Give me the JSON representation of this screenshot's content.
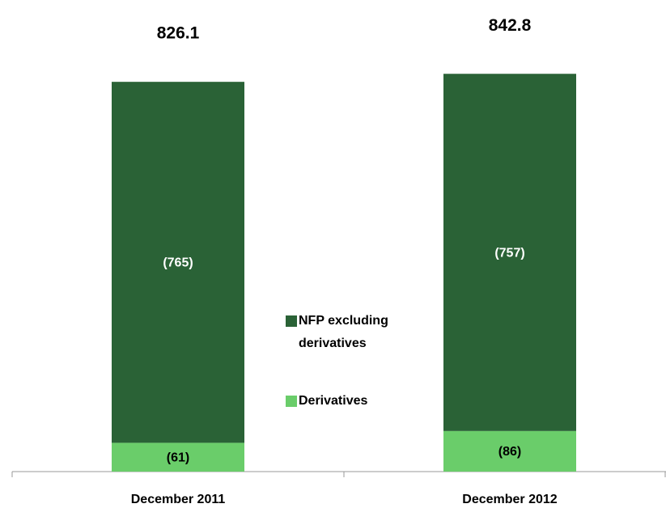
{
  "chart_data": {
    "type": "stacked_bar",
    "categories": [
      "December 2011",
      "December 2012"
    ],
    "series": [
      {
        "name": "Derivatives",
        "color": "#6acd6a",
        "values": [
          61,
          86
        ],
        "value_labels": [
          "(61)",
          "(86)"
        ]
      },
      {
        "name": "NFP excluding derivatives",
        "color": "#2a6236",
        "values": [
          765,
          757
        ],
        "value_labels": [
          "(765)",
          "(757)"
        ]
      }
    ],
    "totals": [
      826.1,
      842.8
    ],
    "ylim": [
      0,
      900
    ]
  }
}
